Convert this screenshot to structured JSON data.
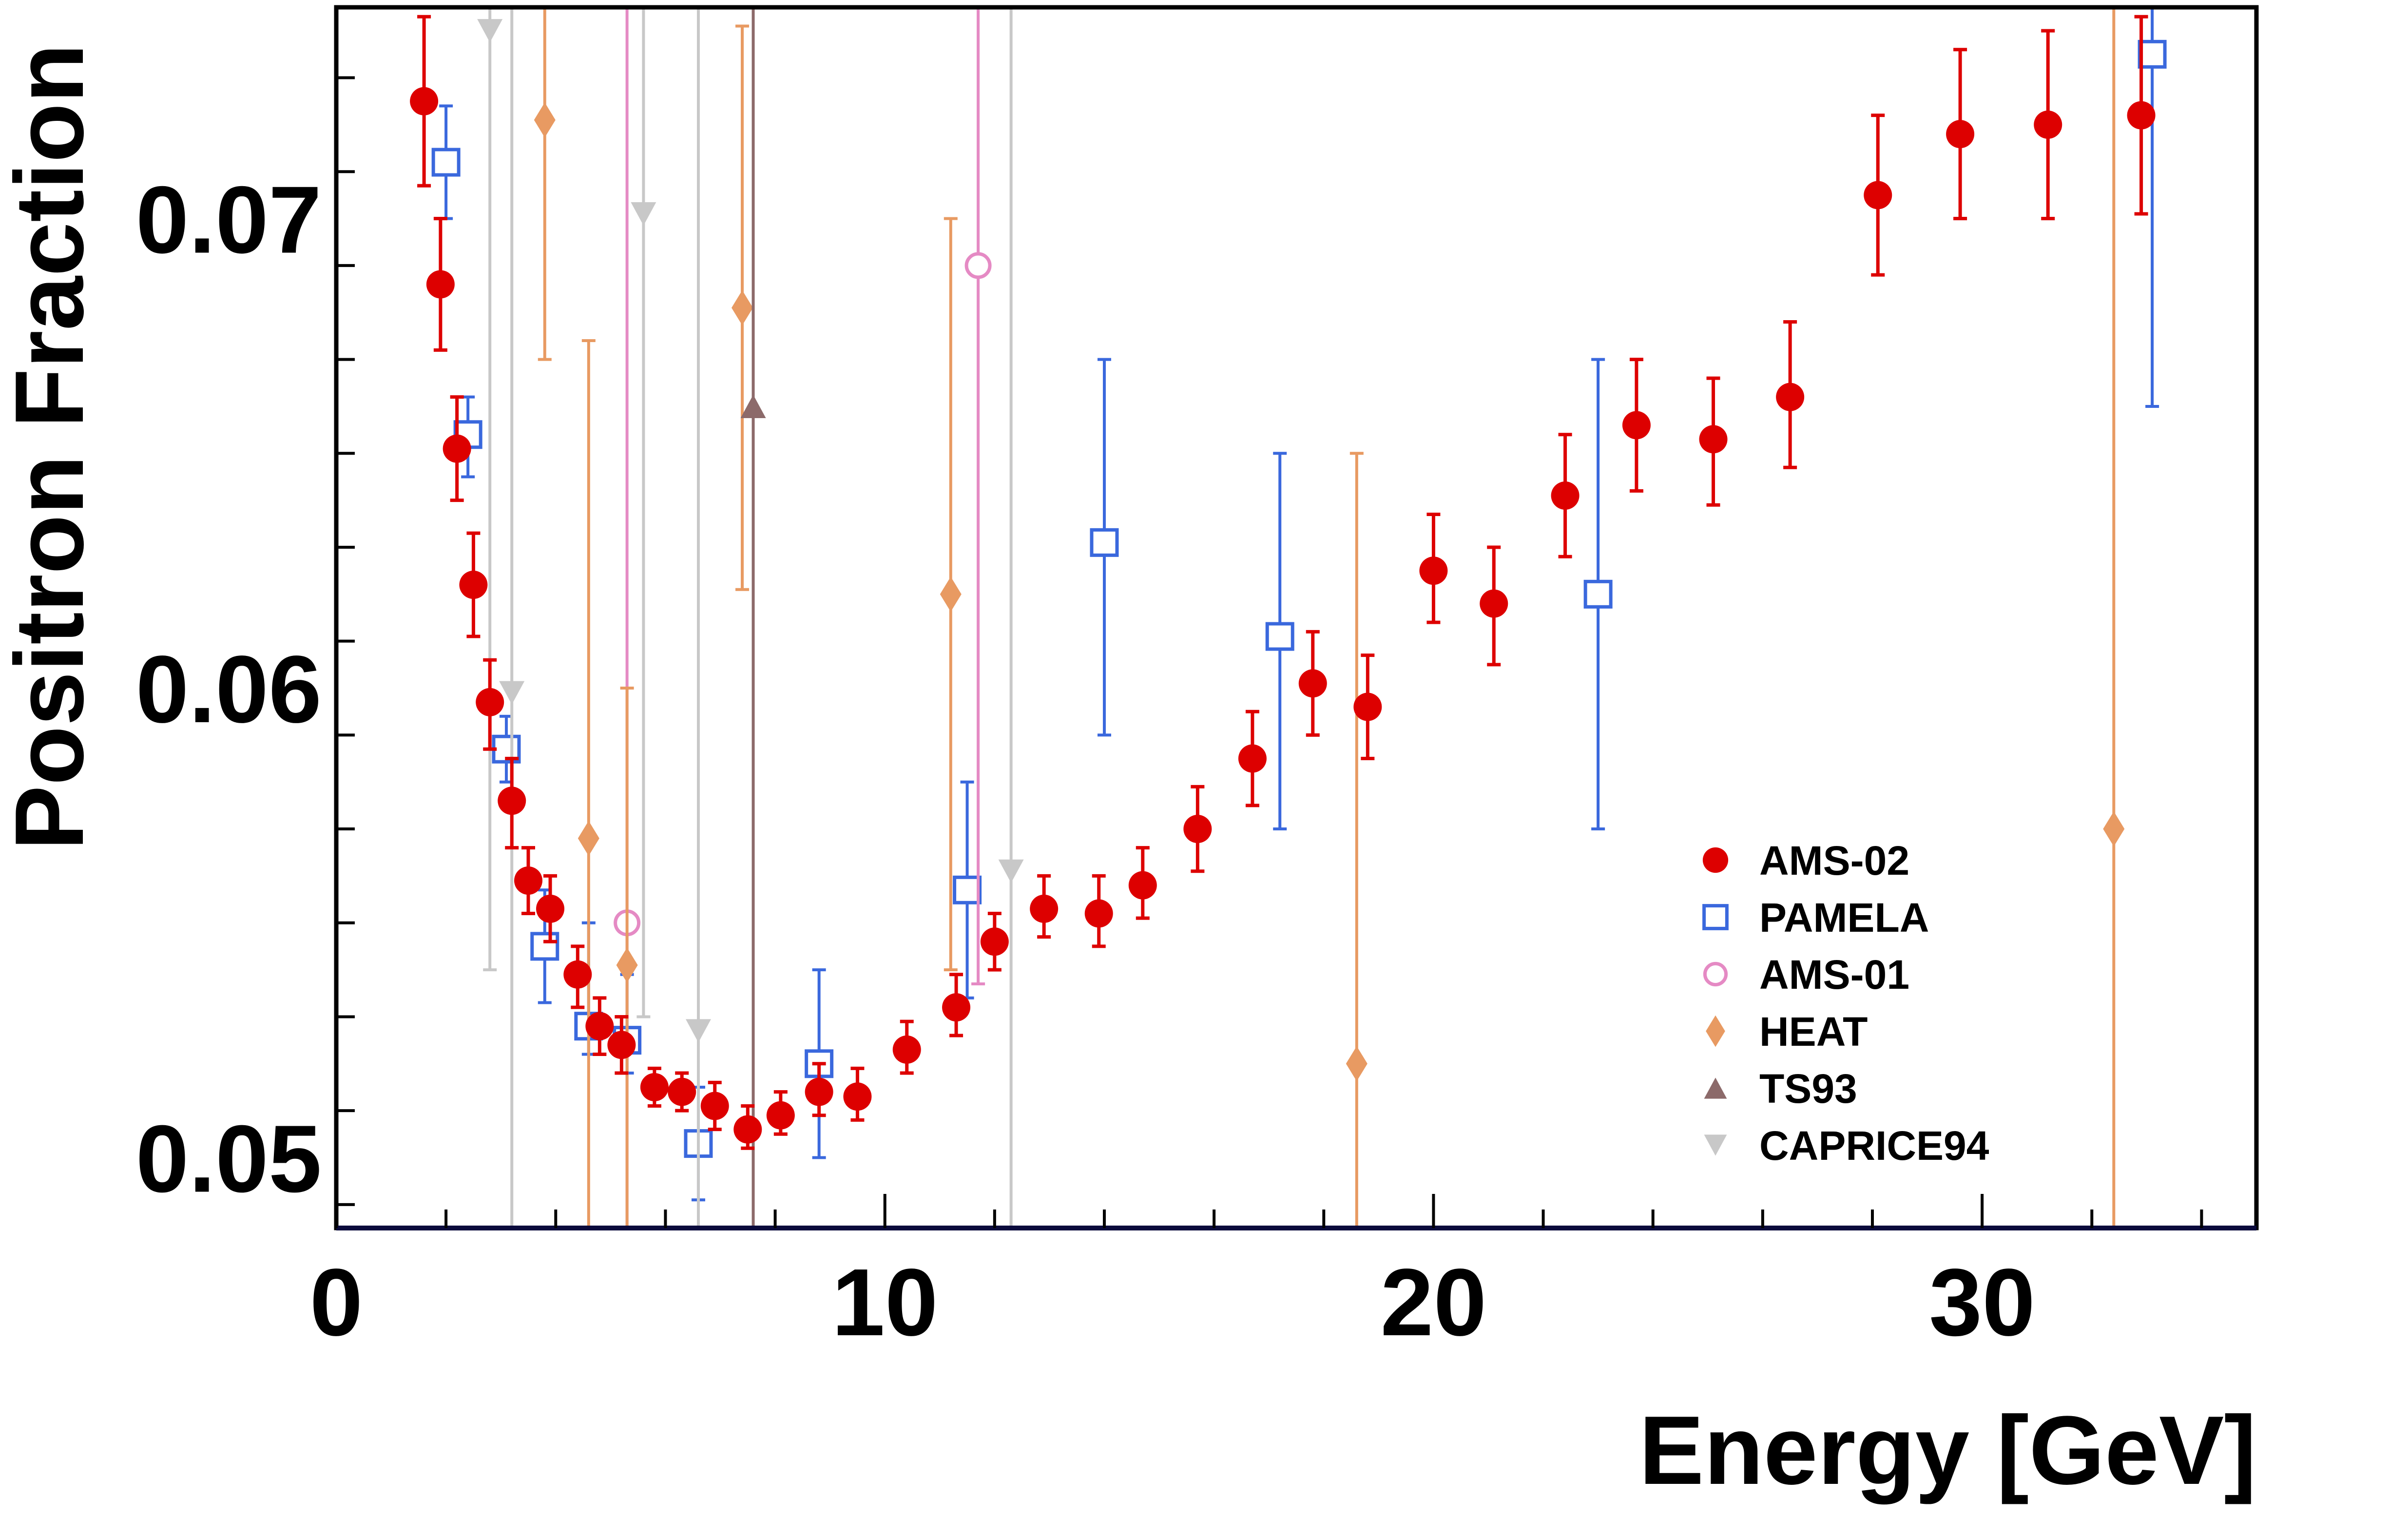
{
  "chart_data": {
    "type": "scatter",
    "title": "",
    "xlabel": "Energy [GeV]",
    "ylabel": "Positron Fraction",
    "xlim": [
      0,
      35
    ],
    "ylim": [
      0.0485,
      0.0745
    ],
    "grid": false,
    "legend_position": "right",
    "x_ticks": [
      0,
      10,
      20,
      30
    ],
    "x_tick_labels": [
      "0",
      "10",
      "20",
      "30"
    ],
    "y_ticks": [
      0.05,
      0.06,
      0.07
    ],
    "y_tick_labels": [
      "0.05",
      "0.06",
      "0.07"
    ],
    "series": [
      {
        "name": "AMS-02",
        "marker": "filled-circle",
        "color": "#dd0000",
        "points": [
          {
            "x": 1.6,
            "y": 0.0725,
            "lo": 0.0707,
            "hi": 0.0743
          },
          {
            "x": 1.9,
            "y": 0.0686,
            "lo": 0.0672,
            "hi": 0.07
          },
          {
            "x": 2.2,
            "y": 0.0651,
            "lo": 0.064,
            "hi": 0.0662
          },
          {
            "x": 2.5,
            "y": 0.0622,
            "lo": 0.0611,
            "hi": 0.0633
          },
          {
            "x": 2.8,
            "y": 0.0597,
            "lo": 0.0587,
            "hi": 0.0606
          },
          {
            "x": 3.2,
            "y": 0.0576,
            "lo": 0.0566,
            "hi": 0.0585
          },
          {
            "x": 3.5,
            "y": 0.0559,
            "lo": 0.0552,
            "hi": 0.0566
          },
          {
            "x": 3.9,
            "y": 0.0553,
            "lo": 0.0546,
            "hi": 0.056
          },
          {
            "x": 4.4,
            "y": 0.0539,
            "lo": 0.0532,
            "hi": 0.0545
          },
          {
            "x": 4.8,
            "y": 0.0528,
            "lo": 0.0522,
            "hi": 0.0534
          },
          {
            "x": 5.2,
            "y": 0.0524,
            "lo": 0.0518,
            "hi": 0.053
          },
          {
            "x": 5.8,
            "y": 0.0515,
            "lo": 0.0511,
            "hi": 0.0519
          },
          {
            "x": 6.3,
            "y": 0.0514,
            "lo": 0.051,
            "hi": 0.0518
          },
          {
            "x": 6.9,
            "y": 0.0511,
            "lo": 0.0506,
            "hi": 0.0516
          },
          {
            "x": 7.5,
            "y": 0.0506,
            "lo": 0.0502,
            "hi": 0.0511
          },
          {
            "x": 8.1,
            "y": 0.0509,
            "lo": 0.0505,
            "hi": 0.0514
          },
          {
            "x": 8.8,
            "y": 0.0514,
            "lo": 0.0509,
            "hi": 0.052
          },
          {
            "x": 9.5,
            "y": 0.0513,
            "lo": 0.0508,
            "hi": 0.0519
          },
          {
            "x": 10.4,
            "y": 0.0523,
            "lo": 0.0518,
            "hi": 0.0529
          },
          {
            "x": 11.3,
            "y": 0.0532,
            "lo": 0.0526,
            "hi": 0.0539
          },
          {
            "x": 12.0,
            "y": 0.0546,
            "lo": 0.054,
            "hi": 0.0552
          },
          {
            "x": 12.9,
            "y": 0.0553,
            "lo": 0.0547,
            "hi": 0.056
          },
          {
            "x": 13.9,
            "y": 0.0552,
            "lo": 0.0545,
            "hi": 0.056
          },
          {
            "x": 14.7,
            "y": 0.0558,
            "lo": 0.0551,
            "hi": 0.0566
          },
          {
            "x": 15.7,
            "y": 0.057,
            "lo": 0.0561,
            "hi": 0.0579
          },
          {
            "x": 16.7,
            "y": 0.0585,
            "lo": 0.0575,
            "hi": 0.0595
          },
          {
            "x": 17.8,
            "y": 0.0601,
            "lo": 0.059,
            "hi": 0.0612
          },
          {
            "x": 18.8,
            "y": 0.0596,
            "lo": 0.0585,
            "hi": 0.0607
          },
          {
            "x": 20.0,
            "y": 0.0625,
            "lo": 0.0614,
            "hi": 0.0637
          },
          {
            "x": 21.1,
            "y": 0.0618,
            "lo": 0.0605,
            "hi": 0.063
          },
          {
            "x": 22.4,
            "y": 0.0641,
            "lo": 0.0628,
            "hi": 0.0654
          },
          {
            "x": 23.7,
            "y": 0.0656,
            "lo": 0.0642,
            "hi": 0.067
          },
          {
            "x": 25.1,
            "y": 0.0653,
            "lo": 0.0639,
            "hi": 0.0666
          },
          {
            "x": 26.5,
            "y": 0.0662,
            "lo": 0.0647,
            "hi": 0.0678
          },
          {
            "x": 28.1,
            "y": 0.0705,
            "lo": 0.0688,
            "hi": 0.0722
          },
          {
            "x": 29.6,
            "y": 0.0718,
            "lo": 0.07,
            "hi": 0.0736
          },
          {
            "x": 31.2,
            "y": 0.072,
            "lo": 0.07,
            "hi": 0.074
          },
          {
            "x": 32.9,
            "y": 0.0722,
            "lo": 0.0701,
            "hi": 0.0743
          }
        ]
      },
      {
        "name": "PAMELA",
        "marker": "open-square",
        "color": "#3a68dd",
        "points": [
          {
            "x": 2.0,
            "y": 0.0712,
            "lo": 0.07,
            "hi": 0.0724
          },
          {
            "x": 2.4,
            "y": 0.0654,
            "lo": 0.0645,
            "hi": 0.0662
          },
          {
            "x": 3.1,
            "y": 0.0587,
            "lo": 0.058,
            "hi": 0.0594
          },
          {
            "x": 3.8,
            "y": 0.0545,
            "lo": 0.0533,
            "hi": 0.0557
          },
          {
            "x": 4.6,
            "y": 0.0528,
            "lo": 0.0522,
            "hi": 0.055
          },
          {
            "x": 5.3,
            "y": 0.0525,
            "lo": 0.0518,
            "hi": 0.0539
          },
          {
            "x": 6.6,
            "y": 0.0503,
            "lo": 0.0491,
            "hi": 0.0515
          },
          {
            "x": 8.8,
            "y": 0.052,
            "lo": 0.05,
            "hi": 0.054
          },
          {
            "x": 11.5,
            "y": 0.0557,
            "lo": 0.0534,
            "hi": 0.058
          },
          {
            "x": 14.0,
            "y": 0.0631,
            "lo": 0.059,
            "hi": 0.067
          },
          {
            "x": 17.2,
            "y": 0.0611,
            "lo": 0.057,
            "hi": 0.065
          },
          {
            "x": 23.0,
            "y": 0.062,
            "lo": 0.057,
            "hi": 0.067
          },
          {
            "x": 33.1,
            "y": 0.0735,
            "lo": 0.066,
            "hi": 0.0745
          }
        ]
      },
      {
        "name": "AMS-01",
        "marker": "open-circle",
        "color": "#e58ac4",
        "points": [
          {
            "x": 5.3,
            "y": 0.055,
            "lo": 0.0485,
            "hi": 0.0745
          },
          {
            "x": 11.7,
            "y": 0.069,
            "lo": 0.0537,
            "hi": 0.0745
          }
        ]
      },
      {
        "name": "HEAT",
        "marker": "filled-diamond",
        "color": "#e89a62",
        "points": [
          {
            "x": 3.8,
            "y": 0.0721,
            "lo": 0.067,
            "hi": 0.0745
          },
          {
            "x": 4.6,
            "y": 0.0568,
            "lo": 0.0485,
            "hi": 0.0674
          },
          {
            "x": 5.3,
            "y": 0.0541,
            "lo": 0.0485,
            "hi": 0.06
          },
          {
            "x": 7.4,
            "y": 0.0681,
            "lo": 0.0621,
            "hi": 0.0741
          },
          {
            "x": 11.2,
            "y": 0.062,
            "lo": 0.054,
            "hi": 0.07
          },
          {
            "x": 18.6,
            "y": 0.052,
            "lo": 0.0485,
            "hi": 0.065
          },
          {
            "x": 32.4,
            "y": 0.057,
            "lo": 0.0485,
            "hi": 0.0745
          }
        ]
      },
      {
        "name": "TS93",
        "marker": "filled-triangle-up",
        "color": "#8c6a6a",
        "points": [
          {
            "x": 7.6,
            "y": 0.066,
            "lo": 0.0485,
            "hi": 0.0745
          }
        ]
      },
      {
        "name": "CAPRICE94",
        "marker": "filled-triangle-down",
        "color": "#c8c8c8",
        "points": [
          {
            "x": 2.8,
            "y": 0.074,
            "lo": 0.054,
            "hi": 0.0745
          },
          {
            "x": 3.2,
            "y": 0.0599,
            "lo": 0.0485,
            "hi": 0.0745
          },
          {
            "x": 5.6,
            "y": 0.0701,
            "lo": 0.053,
            "hi": 0.0745
          },
          {
            "x": 6.6,
            "y": 0.0527,
            "lo": 0.0485,
            "hi": 0.0745
          },
          {
            "x": 12.3,
            "y": 0.0561,
            "lo": 0.0485,
            "hi": 0.0745
          }
        ]
      }
    ]
  }
}
